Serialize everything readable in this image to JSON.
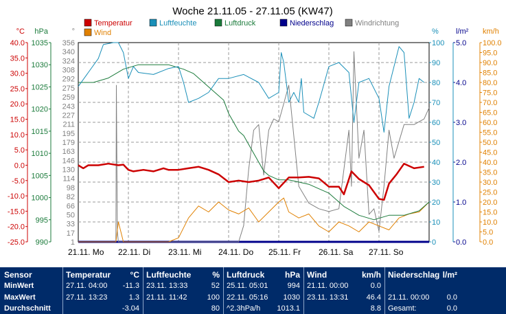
{
  "title": "Woche 21.11.05 - 27.11.05 (KW47)",
  "legend": [
    {
      "label": "Temperatur",
      "color": "#cc0000"
    },
    {
      "label": "Luftfeuchte",
      "color": "#1a8fb8"
    },
    {
      "label": "Luftdruck",
      "color": "#1a7a3a"
    },
    {
      "label": "Niederschlag",
      "color": "#00008b"
    },
    {
      "label": "Windrichtung",
      "color": "#808080"
    },
    {
      "label": "Wind",
      "color": "#e08000"
    }
  ],
  "axes": {
    "temp": {
      "unit": "°C",
      "color": "#cc0000",
      "ticks": [
        "40.0",
        "35.0",
        "30.0",
        "25.0",
        "20.0",
        "15.0",
        "10.0",
        "5.0",
        "0.0",
        "-5.0",
        "-10.0",
        "-15.0",
        "-20.0",
        "-25.0"
      ]
    },
    "pressure": {
      "unit": "hPa",
      "color": "#1a7a3a",
      "ticks": [
        "1035",
        "1030",
        "1025",
        "1020",
        "1015",
        "1010",
        "1005",
        "1000",
        "995",
        "990"
      ]
    },
    "direction": {
      "unit": "°",
      "color": "#808080",
      "ticks": [
        "356",
        "340",
        "324",
        "308",
        "292",
        "275",
        "259",
        "243",
        "227",
        "211",
        "195",
        "179",
        "163",
        "146",
        "130",
        "114",
        "98",
        "82",
        "66",
        "50",
        "33",
        "17",
        "1"
      ]
    },
    "humidity": {
      "unit": "%",
      "color": "#1a8fb8",
      "ticks": [
        "100",
        "90",
        "80",
        "70",
        "60",
        "50",
        "40",
        "30",
        "20",
        "10",
        "0"
      ]
    },
    "rain": {
      "unit": "l/m²",
      "color": "#00008b",
      "ticks": [
        "5.0",
        "4.0",
        "3.0",
        "2.0",
        "1.0",
        "0.0"
      ]
    },
    "wind": {
      "unit": "km/h",
      "color": "#e08000",
      "ticks": [
        "100.0",
        "95.0",
        "90.0",
        "85.0",
        "80.0",
        "75.0",
        "70.0",
        "65.0",
        "60.0",
        "55.0",
        "50.0",
        "45.0",
        "40.0",
        "35.0",
        "30.0",
        "25.0",
        "20.0",
        "15.0",
        "10.0",
        "5.0",
        "0.0"
      ]
    }
  },
  "x_labels": [
    "21.11. Mo",
    "22.11. Di",
    "23.11. Mi",
    "24.11. Do",
    "25.11. Fr",
    "26.11. Sa",
    "27.11. So"
  ],
  "chart_data": {
    "type": "line",
    "title": "Woche 21.11.05 - 27.11.05 (KW47)",
    "x_unit": "days since 21.11. 00:00",
    "xlim": [
      0,
      7
    ],
    "grid": true,
    "legend_position": "top",
    "series": [
      {
        "name": "Temperatur",
        "axis": "temp",
        "ylim": [
          -25,
          40
        ],
        "x": [
          0,
          0.1,
          0.2,
          0.4,
          0.6,
          0.8,
          0.9,
          1.0,
          1.1,
          1.3,
          1.5,
          1.7,
          1.8,
          2.0,
          2.2,
          2.4,
          2.6,
          2.8,
          3.0,
          3.2,
          3.4,
          3.6,
          3.8,
          4.0,
          4.2,
          4.4,
          4.6,
          4.8,
          5.0,
          5.2,
          5.3,
          5.45,
          5.6,
          5.8,
          6.0,
          6.1,
          6.2,
          6.35,
          6.5,
          6.7,
          6.9
        ],
        "values": [
          0,
          -1,
          0,
          0,
          0.5,
          0,
          0.2,
          -1.5,
          -2,
          -1.5,
          -2,
          -1,
          -1.5,
          -1.5,
          -1,
          -0.5,
          -1.5,
          -3,
          -5.5,
          -5,
          -5.5,
          -5,
          -4,
          -7.5,
          -4,
          -4,
          -3.8,
          -4.3,
          -7,
          -7,
          -9.5,
          -2,
          -4.5,
          -6.5,
          -11,
          -11.3,
          -6,
          -3,
          0.5,
          -1,
          -0.5
        ]
      },
      {
        "name": "Luftfeuchte",
        "axis": "humidity",
        "ylim": [
          0,
          100
        ],
        "x": [
          0,
          0.2,
          0.4,
          0.5,
          0.7,
          0.8,
          0.9,
          1.0,
          1.1,
          1.2,
          1.5,
          1.8,
          2.0,
          2.1,
          2.2,
          2.4,
          2.6,
          2.8,
          3.0,
          3.3,
          3.6,
          3.8,
          4.0,
          4.05,
          4.1,
          4.2,
          4.3,
          4.4,
          4.45,
          4.5,
          4.7,
          4.8,
          5.0,
          5.2,
          5.4,
          5.5,
          5.6,
          5.8,
          6.0,
          6.1,
          6.2,
          6.4,
          6.5,
          6.6,
          6.7,
          6.8,
          6.9
        ],
        "values": [
          78,
          85,
          92,
          99,
          100,
          100,
          95,
          82,
          88,
          85,
          84,
          87,
          88,
          80,
          70,
          72,
          75,
          82,
          82,
          84,
          80,
          72,
          75,
          95,
          90,
          70,
          75,
          70,
          82,
          65,
          62,
          70,
          88,
          90,
          85,
          60,
          80,
          82,
          72,
          55,
          78,
          98,
          95,
          62,
          70,
          82,
          80
        ]
      },
      {
        "name": "Luftdruck",
        "axis": "pressure",
        "ylim": [
          990,
          1035
        ],
        "x": [
          0,
          0.3,
          0.6,
          0.9,
          1.2,
          1.5,
          1.8,
          2.1,
          2.3,
          2.5,
          2.7,
          2.9,
          3.0,
          3.1,
          3.2,
          3.3,
          3.4,
          3.5,
          3.6,
          3.7,
          3.8,
          4.0,
          4.2,
          4.4,
          4.6,
          4.8,
          5.0,
          5.3,
          5.6,
          5.9,
          6.2,
          6.5,
          6.8,
          7.0
        ],
        "values": [
          1026,
          1026,
          1027,
          1029,
          1030,
          1030,
          1030,
          1029,
          1028,
          1026,
          1024,
          1022,
          1019,
          1017,
          1015,
          1014,
          1012,
          1010,
          1008,
          1006,
          1005,
          1004,
          1004,
          1003.5,
          1003,
          1002,
          1001,
          998,
          996,
          995,
          996,
          996,
          997,
          999
        ]
      },
      {
        "name": "Windrichtung",
        "axis": "direction",
        "ylim": [
          1,
          356
        ],
        "x": [
          0,
          0.5,
          0.75,
          0.76,
          0.78,
          0.8,
          1.0,
          1.4,
          1.8,
          2.2,
          2.4,
          2.6,
          2.8,
          3.0,
          3.2,
          3.3,
          3.4,
          3.5,
          3.6,
          3.7,
          3.8,
          3.9,
          4.0,
          4.2,
          4.4,
          4.6,
          4.8,
          5.0,
          5.2,
          5.4,
          5.45,
          5.5,
          5.6,
          5.7,
          5.8,
          5.9,
          6.0,
          6.1,
          6.2,
          6.3,
          6.5,
          6.7,
          6.9,
          7.0
        ],
        "values": [
          1,
          1,
          1,
          280,
          20,
          1,
          1,
          1,
          1,
          1,
          1,
          1,
          1,
          1,
          1,
          30,
          130,
          200,
          210,
          120,
          200,
          220,
          215,
          280,
          100,
          70,
          60,
          55,
          60,
          200,
          100,
          340,
          150,
          200,
          50,
          60,
          20,
          100,
          200,
          150,
          210,
          210,
          220,
          240
        ]
      },
      {
        "name": "Wind",
        "axis": "wind",
        "ylim": [
          0,
          100
        ],
        "x": [
          0,
          0.5,
          0.75,
          0.8,
          0.85,
          0.9,
          1.0,
          1.4,
          1.8,
          2.0,
          2.2,
          2.4,
          2.6,
          2.8,
          3.0,
          3.2,
          3.4,
          3.6,
          3.8,
          4.0,
          4.1,
          4.2,
          4.4,
          4.6,
          4.8,
          5.0,
          5.2,
          5.4,
          5.6,
          5.8,
          6.0,
          6.2,
          6.4,
          6.6,
          6.8,
          7.0
        ],
        "values": [
          0,
          0,
          0,
          10,
          5,
          0,
          0,
          0,
          0,
          2,
          12,
          18,
          15,
          20,
          16,
          14,
          17,
          10,
          15,
          20,
          22,
          15,
          12,
          14,
          8,
          5,
          10,
          8,
          5,
          10,
          8,
          6,
          12,
          14,
          15,
          20
        ]
      },
      {
        "name": "Niederschlag",
        "axis": "rain",
        "ylim": [
          0,
          5
        ],
        "x": [
          0,
          7
        ],
        "values": [
          0,
          0
        ]
      }
    ]
  },
  "table": {
    "row_labels": [
      "Sensor",
      "MinWert",
      "MaxWert",
      "Durchschnitt"
    ],
    "columns": [
      {
        "name": "Temperatur",
        "unit": "°C",
        "rows": [
          [
            "27.11. 04:00",
            "-11.3"
          ],
          [
            "27.11. 13:23",
            "1.3"
          ],
          [
            "",
            "-3.04"
          ]
        ]
      },
      {
        "name": "Luftfeuchte",
        "unit": "%",
        "rows": [
          [
            "23.11. 13:33",
            "52"
          ],
          [
            "21.11. 11:42",
            "100"
          ],
          [
            "",
            "80"
          ]
        ]
      },
      {
        "name": "Luftdruck",
        "unit": "hPa",
        "rows": [
          [
            "25.11. 05:01",
            "994"
          ],
          [
            "22.11. 05:16",
            "1030"
          ],
          [
            "^2.3hPa/h",
            "1013.1"
          ]
        ]
      },
      {
        "name": "Wind",
        "unit": "km/h",
        "rows": [
          [
            "21.11. 00:00",
            "0.0"
          ],
          [
            "23.11. 13:31",
            "46.4"
          ],
          [
            "",
            "8.8"
          ]
        ]
      },
      {
        "name": "Niederschlag",
        "unit": "l/m²",
        "rows": [
          [
            "",
            ""
          ],
          [
            "21.11. 00:00",
            "0.0"
          ],
          [
            "Gesamt:",
            "0.0"
          ]
        ]
      }
    ]
  }
}
